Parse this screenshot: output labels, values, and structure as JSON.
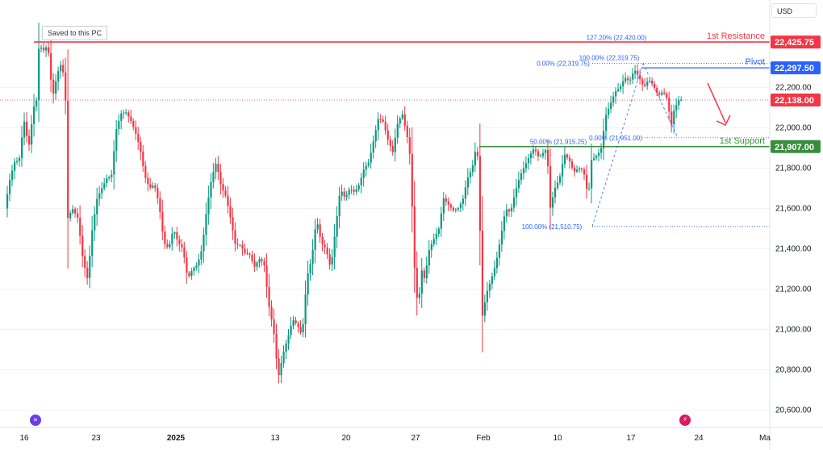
{
  "ui": {
    "saved_badge": "Saved to this PC",
    "currency": "USD",
    "goto_icon": "double-chevron-right-icon",
    "flash_icon": "lightning-icon",
    "colors": {
      "up": "#089981",
      "down": "#f23645",
      "resistance": "#f23645",
      "pivot": "#2962ff",
      "support": "#388e3c",
      "fib": "#2962ff",
      "arrow": "#f23645"
    }
  },
  "chart_data": {
    "type": "candlestick",
    "ylim": [
      20550,
      22550
    ],
    "y_ticks": [
      {
        "value": 20600,
        "label": "20,600.00"
      },
      {
        "value": 20800,
        "label": "20,800.00"
      },
      {
        "value": 21000,
        "label": "21,000.00"
      },
      {
        "value": 21200,
        "label": "21,200.00"
      },
      {
        "value": 21400,
        "label": "21,400.00"
      },
      {
        "value": 21600,
        "label": "21,600.00"
      },
      {
        "value": 21800,
        "label": "21,800.00"
      },
      {
        "value": 22000,
        "label": "22,000.00"
      },
      {
        "value": 22200,
        "label": "22,200.00"
      }
    ],
    "x_ticks": [
      {
        "label": "16",
        "bold": false
      },
      {
        "label": "23",
        "bold": false
      },
      {
        "label": "2025",
        "bold": true
      },
      {
        "label": "13",
        "bold": false
      },
      {
        "label": "20",
        "bold": false
      },
      {
        "label": "27",
        "bold": false
      },
      {
        "label": "Feb",
        "bold": false
      },
      {
        "label": "10",
        "bold": false
      },
      {
        "label": "17",
        "bold": false
      },
      {
        "label": "24",
        "bold": false
      },
      {
        "label": "Ma",
        "bold": false
      }
    ],
    "levels": [
      {
        "name": "1st Resistance",
        "value": 22425.75,
        "label": "22,425.75",
        "color": "#f23645"
      },
      {
        "name": "Pivot",
        "value": 22297.5,
        "label": "22,297.50",
        "color": "#2962ff"
      },
      {
        "name": "1st Support",
        "value": 21907.0,
        "label": "21,907.00",
        "color": "#388e3c"
      }
    ],
    "last_price": {
      "value": 22138.0,
      "label": "22,138.00",
      "color": "#f23645"
    },
    "fib_labels": [
      "127.20% (22,420.00)",
      "100.00% (22,319.75)",
      "0.00% (22,319.75)",
      "0.00% (21,951.00)",
      "50.00% (21,915.25)",
      "100.00% (21,510.75)"
    ],
    "path": [
      [
        0,
        21600
      ],
      [
        6,
        21740
      ],
      [
        12,
        21830
      ],
      [
        18,
        21840
      ],
      [
        24,
        22040
      ],
      [
        30,
        21900
      ],
      [
        36,
        22100
      ],
      [
        40,
        22140
      ],
      [
        43,
        22420
      ],
      [
        48,
        22380
      ],
      [
        54,
        22410
      ],
      [
        60,
        22150
      ],
      [
        66,
        22270
      ],
      [
        72,
        22330
      ],
      [
        77,
        22100
      ],
      [
        79,
        21550
      ],
      [
        85,
        21600
      ],
      [
        92,
        21550
      ],
      [
        98,
        21350
      ],
      [
        104,
        21250
      ],
      [
        110,
        21500
      ],
      [
        116,
        21650
      ],
      [
        122,
        21700
      ],
      [
        128,
        21750
      ],
      [
        134,
        21760
      ],
      [
        140,
        21990
      ],
      [
        146,
        22070
      ],
      [
        152,
        22080
      ],
      [
        158,
        22040
      ],
      [
        164,
        21980
      ],
      [
        170,
        21900
      ],
      [
        176,
        21760
      ],
      [
        182,
        21700
      ],
      [
        188,
        21720
      ],
      [
        194,
        21620
      ],
      [
        200,
        21430
      ],
      [
        206,
        21400
      ],
      [
        212,
        21500
      ],
      [
        218,
        21430
      ],
      [
        224,
        21400
      ],
      [
        230,
        21250
      ],
      [
        236,
        21300
      ],
      [
        242,
        21320
      ],
      [
        248,
        21400
      ],
      [
        254,
        21600
      ],
      [
        260,
        21750
      ],
      [
        266,
        21830
      ],
      [
        272,
        21710
      ],
      [
        278,
        21660
      ],
      [
        284,
        21550
      ],
      [
        290,
        21420
      ],
      [
        296,
        21420
      ],
      [
        302,
        21380
      ],
      [
        308,
        21370
      ],
      [
        314,
        21310
      ],
      [
        320,
        21350
      ],
      [
        326,
        21330
      ],
      [
        332,
        21120
      ],
      [
        338,
        21000
      ],
      [
        344,
        20760
      ],
      [
        350,
        20880
      ],
      [
        356,
        20960
      ],
      [
        362,
        21050
      ],
      [
        368,
        21020
      ],
      [
        374,
        20970
      ],
      [
        380,
        21260
      ],
      [
        386,
        21350
      ],
      [
        392,
        21550
      ],
      [
        398,
        21430
      ],
      [
        404,
        21400
      ],
      [
        410,
        21300
      ],
      [
        416,
        21500
      ],
      [
        422,
        21700
      ],
      [
        428,
        21650
      ],
      [
        434,
        21700
      ],
      [
        440,
        21680
      ],
      [
        446,
        21720
      ],
      [
        452,
        21800
      ],
      [
        458,
        21830
      ],
      [
        464,
        21940
      ],
      [
        470,
        22050
      ],
      [
        476,
        22030
      ],
      [
        482,
        21940
      ],
      [
        488,
        21880
      ],
      [
        494,
        22020
      ],
      [
        500,
        22070
      ],
      [
        506,
        21960
      ],
      [
        509,
        21900
      ],
      [
        512,
        21650
      ],
      [
        516,
        21250
      ],
      [
        520,
        21100
      ],
      [
        524,
        21300
      ],
      [
        528,
        21250
      ],
      [
        534,
        21400
      ],
      [
        540,
        21450
      ],
      [
        546,
        21500
      ],
      [
        552,
        21650
      ],
      [
        558,
        21620
      ],
      [
        564,
        21590
      ],
      [
        570,
        21600
      ],
      [
        576,
        21640
      ],
      [
        582,
        21750
      ],
      [
        588,
        21800
      ],
      [
        594,
        21930
      ],
      [
        597,
        21650
      ],
      [
        600,
        21050
      ],
      [
        606,
        21180
      ],
      [
        612,
        21250
      ],
      [
        618,
        21330
      ],
      [
        624,
        21460
      ],
      [
        630,
        21600
      ],
      [
        636,
        21580
      ],
      [
        642,
        21680
      ],
      [
        648,
        21760
      ],
      [
        654,
        21810
      ],
      [
        660,
        21860
      ],
      [
        666,
        21900
      ],
      [
        672,
        21850
      ],
      [
        678,
        21880
      ],
      [
        682,
        21900
      ],
      [
        686,
        21600
      ],
      [
        692,
        21700
      ],
      [
        698,
        21750
      ],
      [
        704,
        21870
      ],
      [
        710,
        21840
      ],
      [
        716,
        21780
      ],
      [
        722,
        21800
      ],
      [
        728,
        21790
      ],
      [
        734,
        21650
      ],
      [
        738,
        21840
      ],
      [
        744,
        21860
      ],
      [
        750,
        21890
      ],
      [
        756,
        22060
      ],
      [
        762,
        22120
      ],
      [
        768,
        22180
      ],
      [
        774,
        22200
      ],
      [
        780,
        22250
      ],
      [
        786,
        22230
      ],
      [
        792,
        22290
      ],
      [
        798,
        22250
      ],
      [
        804,
        22200
      ],
      [
        810,
        22240
      ],
      [
        816,
        22210
      ],
      [
        822,
        22160
      ],
      [
        828,
        22180
      ],
      [
        834,
        22140
      ],
      [
        838,
        22000
      ],
      [
        842,
        22090
      ],
      [
        848,
        22138
      ]
    ]
  }
}
